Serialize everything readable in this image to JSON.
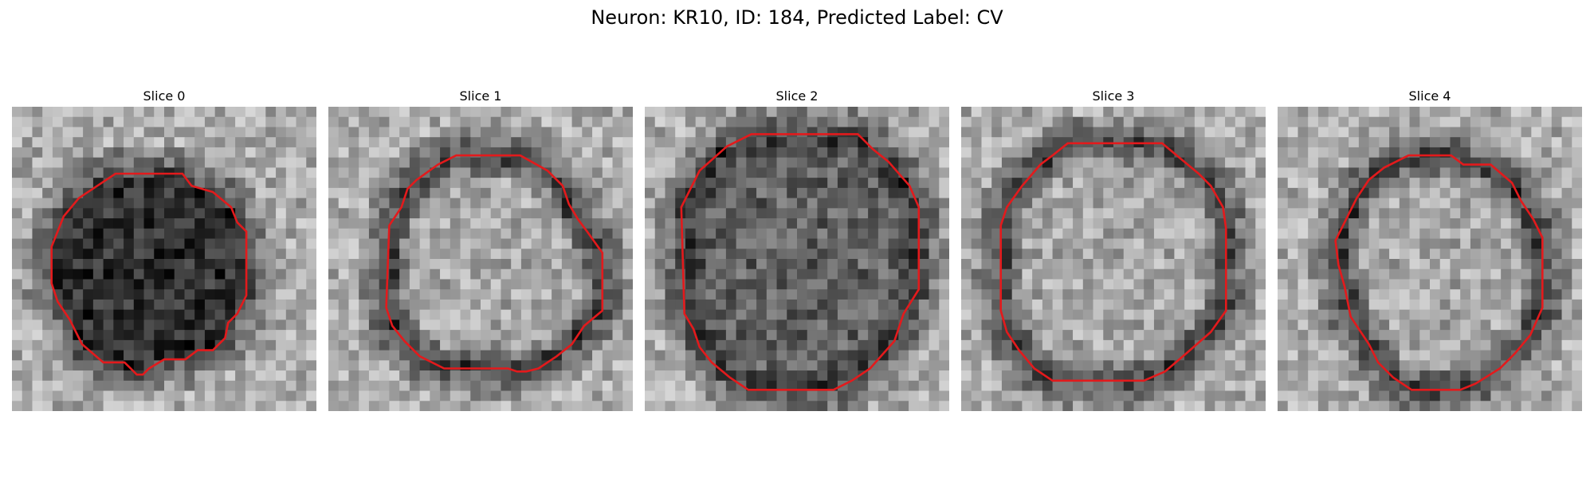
{
  "figure": {
    "title": "Neuron: KR10, ID: 184, Predicted Label: CV",
    "contour_color": "#e31a1c",
    "colormap": "gray"
  },
  "slices": [
    {
      "label": "Slice 0",
      "center": "dark",
      "outline": [
        [
          0.34,
          0.22
        ],
        [
          0.56,
          0.22
        ],
        [
          0.59,
          0.26
        ],
        [
          0.66,
          0.28
        ],
        [
          0.72,
          0.33
        ],
        [
          0.74,
          0.38
        ],
        [
          0.77,
          0.41
        ],
        [
          0.77,
          0.62
        ],
        [
          0.74,
          0.68
        ],
        [
          0.71,
          0.71
        ],
        [
          0.7,
          0.76
        ],
        [
          0.66,
          0.8
        ],
        [
          0.61,
          0.8
        ],
        [
          0.57,
          0.83
        ],
        [
          0.5,
          0.83
        ],
        [
          0.45,
          0.86
        ],
        [
          0.43,
          0.88
        ],
        [
          0.41,
          0.88
        ],
        [
          0.39,
          0.86
        ],
        [
          0.37,
          0.84
        ],
        [
          0.3,
          0.84
        ],
        [
          0.23,
          0.78
        ],
        [
          0.19,
          0.7
        ],
        [
          0.15,
          0.64
        ],
        [
          0.13,
          0.58
        ],
        [
          0.13,
          0.46
        ],
        [
          0.15,
          0.41
        ],
        [
          0.17,
          0.36
        ],
        [
          0.22,
          0.3
        ],
        [
          0.28,
          0.26
        ]
      ]
    },
    {
      "label": "Slice 1",
      "center": "bright",
      "outline": [
        [
          0.42,
          0.16
        ],
        [
          0.63,
          0.16
        ],
        [
          0.72,
          0.21
        ],
        [
          0.77,
          0.26
        ],
        [
          0.79,
          0.32
        ],
        [
          0.82,
          0.37
        ],
        [
          0.85,
          0.41
        ],
        [
          0.9,
          0.48
        ],
        [
          0.9,
          0.67
        ],
        [
          0.84,
          0.72
        ],
        [
          0.8,
          0.78
        ],
        [
          0.75,
          0.82
        ],
        [
          0.69,
          0.86
        ],
        [
          0.65,
          0.87
        ],
        [
          0.62,
          0.87
        ],
        [
          0.59,
          0.86
        ],
        [
          0.38,
          0.86
        ],
        [
          0.3,
          0.82
        ],
        [
          0.25,
          0.77
        ],
        [
          0.21,
          0.72
        ],
        [
          0.19,
          0.66
        ],
        [
          0.2,
          0.39
        ],
        [
          0.24,
          0.33
        ],
        [
          0.26,
          0.27
        ],
        [
          0.29,
          0.24
        ],
        [
          0.36,
          0.19
        ]
      ]
    },
    {
      "label": "Slice 2",
      "center": "mid",
      "outline": [
        [
          0.35,
          0.09
        ],
        [
          0.7,
          0.09
        ],
        [
          0.75,
          0.14
        ],
        [
          0.8,
          0.18
        ],
        [
          0.87,
          0.26
        ],
        [
          0.9,
          0.33
        ],
        [
          0.9,
          0.6
        ],
        [
          0.85,
          0.68
        ],
        [
          0.82,
          0.77
        ],
        [
          0.74,
          0.86
        ],
        [
          0.68,
          0.9
        ],
        [
          0.62,
          0.93
        ],
        [
          0.34,
          0.93
        ],
        [
          0.28,
          0.89
        ],
        [
          0.22,
          0.84
        ],
        [
          0.18,
          0.79
        ],
        [
          0.16,
          0.73
        ],
        [
          0.13,
          0.68
        ],
        [
          0.12,
          0.33
        ],
        [
          0.15,
          0.27
        ],
        [
          0.18,
          0.21
        ],
        [
          0.27,
          0.13
        ]
      ]
    },
    {
      "label": "Slice 3",
      "center": "bright",
      "outline": [
        [
          0.35,
          0.12
        ],
        [
          0.66,
          0.12
        ],
        [
          0.72,
          0.17
        ],
        [
          0.78,
          0.22
        ],
        [
          0.82,
          0.26
        ],
        [
          0.86,
          0.33
        ],
        [
          0.87,
          0.4
        ],
        [
          0.87,
          0.67
        ],
        [
          0.82,
          0.74
        ],
        [
          0.74,
          0.81
        ],
        [
          0.67,
          0.87
        ],
        [
          0.6,
          0.9
        ],
        [
          0.3,
          0.9
        ],
        [
          0.24,
          0.86
        ],
        [
          0.19,
          0.8
        ],
        [
          0.15,
          0.74
        ],
        [
          0.13,
          0.67
        ],
        [
          0.13,
          0.39
        ],
        [
          0.15,
          0.33
        ],
        [
          0.2,
          0.26
        ],
        [
          0.26,
          0.19
        ],
        [
          0.3,
          0.16
        ]
      ]
    },
    {
      "label": "Slice 4",
      "center": "bright",
      "outline": [
        [
          0.43,
          0.16
        ],
        [
          0.57,
          0.16
        ],
        [
          0.61,
          0.19
        ],
        [
          0.7,
          0.19
        ],
        [
          0.77,
          0.25
        ],
        [
          0.8,
          0.31
        ],
        [
          0.84,
          0.37
        ],
        [
          0.87,
          0.43
        ],
        [
          0.87,
          0.66
        ],
        [
          0.83,
          0.75
        ],
        [
          0.78,
          0.81
        ],
        [
          0.73,
          0.86
        ],
        [
          0.65,
          0.91
        ],
        [
          0.6,
          0.93
        ],
        [
          0.44,
          0.93
        ],
        [
          0.38,
          0.89
        ],
        [
          0.33,
          0.84
        ],
        [
          0.3,
          0.78
        ],
        [
          0.24,
          0.69
        ],
        [
          0.22,
          0.59
        ],
        [
          0.2,
          0.52
        ],
        [
          0.19,
          0.44
        ],
        [
          0.22,
          0.38
        ],
        [
          0.26,
          0.3
        ],
        [
          0.3,
          0.24
        ],
        [
          0.35,
          0.2
        ]
      ]
    }
  ]
}
